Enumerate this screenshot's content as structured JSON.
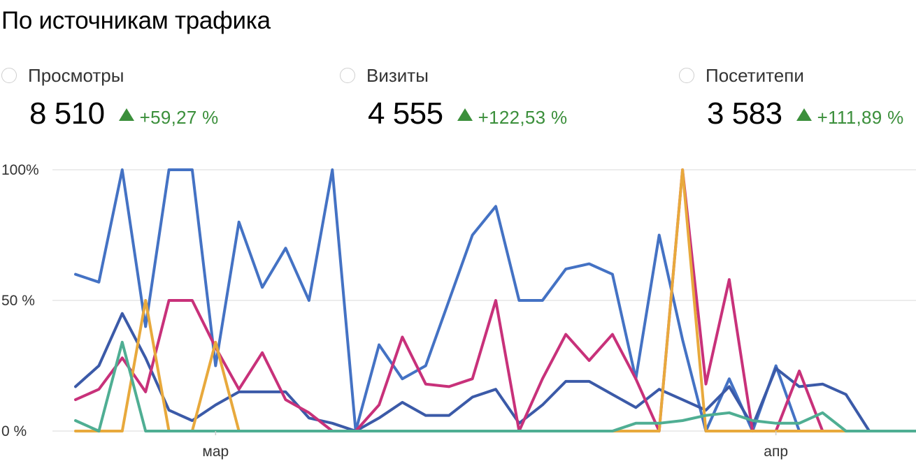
{
  "title": "По источникам трафика",
  "metrics": [
    {
      "label": "Просмотры",
      "value": "8 510",
      "delta": "+59,27 %"
    },
    {
      "label": "Визиты",
      "value": "4 555",
      "delta": "+122,53 %"
    },
    {
      "label": "Посетитепи",
      "value": "3 583",
      "delta": "+111,89 %"
    }
  ],
  "colors": {
    "delta": "#3b8f3b",
    "grid": "#e6e6e6",
    "series": [
      "#4472c4",
      "#3b5aa8",
      "#c8317a",
      "#e8a93c",
      "#4fae93"
    ]
  },
  "chart_data": {
    "type": "line",
    "ylim": [
      0,
      100
    ],
    "yticks": [
      "0 %",
      "50 %",
      "100%"
    ],
    "ytick_values": [
      0,
      50,
      100
    ],
    "xtick_labels": [
      "мар",
      "апр"
    ],
    "xtick_index": [
      6,
      30
    ],
    "x": [
      0,
      1,
      2,
      3,
      4,
      5,
      6,
      7,
      8,
      9,
      10,
      11,
      12,
      13,
      14,
      15,
      16,
      17,
      18,
      19,
      20,
      21,
      22,
      23,
      24,
      25,
      26,
      27,
      28,
      29,
      30,
      31,
      32,
      33,
      34,
      35,
      36
    ],
    "grid": true,
    "series": [
      {
        "color": "#4472c4",
        "values": [
          60,
          57,
          100,
          40,
          100,
          100,
          25,
          80,
          55,
          70,
          50,
          100,
          0,
          33,
          20,
          25,
          50,
          75,
          86,
          50,
          50,
          62,
          64,
          60,
          20,
          75,
          35,
          0,
          20,
          0,
          25,
          0,
          0,
          0,
          0,
          0,
          0
        ]
      },
      {
        "color": "#3b5aa8",
        "values": [
          17,
          25,
          45,
          28,
          8,
          4,
          10,
          15,
          15,
          15,
          5,
          3,
          0,
          5,
          11,
          6,
          6,
          13,
          16,
          3,
          10,
          19,
          19,
          14,
          9,
          16,
          12,
          8,
          17,
          2,
          24,
          17,
          18,
          14,
          0,
          0,
          0
        ]
      },
      {
        "color": "#c8317a",
        "values": [
          12,
          16,
          28,
          15,
          50,
          50,
          32,
          16,
          30,
          12,
          7,
          0,
          0,
          10,
          36,
          18,
          17,
          20,
          50,
          0,
          20,
          37,
          27,
          37,
          20,
          0,
          100,
          18,
          58,
          0,
          0,
          23,
          0,
          0,
          0,
          0,
          0
        ]
      },
      {
        "color": "#e8a93c",
        "values": [
          0,
          0,
          0,
          50,
          0,
          0,
          34,
          0,
          0,
          0,
          0,
          0,
          0,
          0,
          0,
          0,
          0,
          0,
          0,
          0,
          0,
          0,
          0,
          0,
          0,
          0,
          100,
          0,
          0,
          0,
          0,
          0,
          0,
          0,
          0,
          0,
          0
        ]
      },
      {
        "color": "#4fae93",
        "values": [
          4,
          0,
          34,
          0,
          0,
          0,
          0,
          0,
          0,
          0,
          0,
          0,
          0,
          0,
          0,
          0,
          0,
          0,
          0,
          0,
          0,
          0,
          0,
          0,
          3,
          3,
          4,
          6,
          7,
          4,
          3,
          3,
          7,
          0,
          0,
          0,
          0
        ]
      }
    ]
  }
}
